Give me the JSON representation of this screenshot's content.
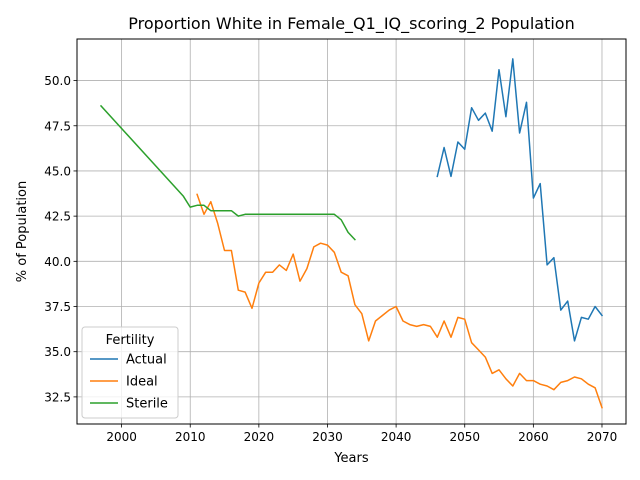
{
  "chart_data": {
    "type": "line",
    "title": "Proportion White in Female_Q1_IQ_scoring_2 Population",
    "xlabel": "Years",
    "ylabel": "% of Population",
    "xlim": [
      1993.5,
      2073.5
    ],
    "ylim": [
      31.0,
      52.3
    ],
    "xticks": [
      2000,
      2010,
      2020,
      2030,
      2040,
      2050,
      2060,
      2070
    ],
    "yticks": [
      32.5,
      35.0,
      37.5,
      40.0,
      42.5,
      45.0,
      47.5,
      50.0
    ],
    "ytick_labels": [
      "32.5",
      "35.0",
      "37.5",
      "40.0",
      "42.5",
      "45.0",
      "47.5",
      "50.0"
    ],
    "grid": true,
    "legend": {
      "title": "Fertility",
      "placement": "lower-left"
    },
    "series": [
      {
        "name": "Actual",
        "color": "#1f77b4",
        "x": [
          2046,
          2047,
          2048,
          2049,
          2050,
          2051,
          2052,
          2053,
          2054,
          2055,
          2056,
          2057,
          2058,
          2059,
          2060,
          2061,
          2062,
          2063,
          2064,
          2065,
          2066,
          2067,
          2068,
          2069,
          2070
        ],
        "y": [
          44.7,
          46.3,
          44.7,
          46.6,
          46.2,
          48.5,
          47.8,
          48.2,
          47.2,
          50.6,
          48.0,
          51.2,
          47.1,
          48.8,
          43.5,
          44.3,
          39.8,
          40.2,
          37.3,
          37.8,
          35.6,
          36.9,
          36.8,
          37.5,
          37.0
        ]
      },
      {
        "name": "Ideal",
        "color": "#ff7f0e",
        "x": [
          2011,
          2012,
          2013,
          2014,
          2015,
          2016,
          2017,
          2018,
          2019,
          2020,
          2021,
          2022,
          2023,
          2024,
          2025,
          2026,
          2027,
          2028,
          2029,
          2030,
          2031,
          2032,
          2033,
          2034,
          2035,
          2036,
          2037,
          2038,
          2039,
          2040,
          2041,
          2042,
          2043,
          2044,
          2045,
          2046,
          2047,
          2048,
          2049,
          2050,
          2051,
          2052,
          2053,
          2054,
          2055,
          2056,
          2057,
          2058,
          2059,
          2060,
          2061,
          2062,
          2063,
          2064,
          2065,
          2066,
          2067,
          2068,
          2069,
          2070
        ],
        "y": [
          43.7,
          42.6,
          43.3,
          42.1,
          40.6,
          40.6,
          38.4,
          38.3,
          37.4,
          38.8,
          39.4,
          39.4,
          39.8,
          39.5,
          40.4,
          38.9,
          39.6,
          40.8,
          41.0,
          40.9,
          40.5,
          39.4,
          39.2,
          37.6,
          37.1,
          35.6,
          36.7,
          37.0,
          37.3,
          37.5,
          36.7,
          36.5,
          36.4,
          36.5,
          36.4,
          35.8,
          36.7,
          35.8,
          36.9,
          36.8,
          35.5,
          35.1,
          34.7,
          33.8,
          34.0,
          33.5,
          33.1,
          33.8,
          33.4,
          33.4,
          33.2,
          33.1,
          32.9,
          33.3,
          33.4,
          33.6,
          33.5,
          33.2,
          33.0,
          31.9
        ]
      },
      {
        "name": "Sterile",
        "color": "#2ca02c",
        "x": [
          1997,
          2009,
          2010,
          2011,
          2012,
          2013,
          2014,
          2015,
          2016,
          2017,
          2018,
          2019,
          2020,
          2021,
          2022,
          2023,
          2024,
          2025,
          2026,
          2027,
          2028,
          2029,
          2030,
          2031,
          2032,
          2033,
          2034
        ],
        "y": [
          48.6,
          43.6,
          43.0,
          43.1,
          43.1,
          42.8,
          42.8,
          42.8,
          42.8,
          42.5,
          42.6,
          42.6,
          42.6,
          42.6,
          42.6,
          42.6,
          42.6,
          42.6,
          42.6,
          42.6,
          42.6,
          42.6,
          42.6,
          42.6,
          42.3,
          41.6,
          41.2
        ]
      }
    ]
  }
}
